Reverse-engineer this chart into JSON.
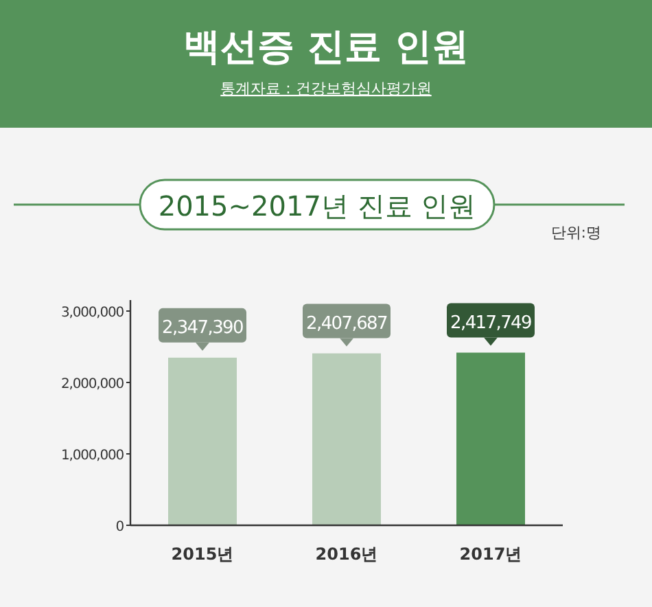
{
  "chart_data": {
    "type": "bar",
    "title": "백선증 진료 인원",
    "subtitle": "2015~2017년 진료 인원",
    "ylabel": "단위:명",
    "annotations": [
      "통계자료 : 건강보험심사평가원"
    ],
    "categories": [
      "2015년",
      "2016년",
      "2017년"
    ],
    "values": [
      2347390,
      2407687,
      2417749
    ],
    "value_labels": [
      "2,347,390",
      "2,407,687",
      "2,417,749"
    ],
    "colors": [
      "#b8cdb8",
      "#b8cdb8",
      "#55935a"
    ],
    "ylim": [
      0,
      3000000
    ],
    "yticks": [
      {
        "value": 0,
        "label": "0"
      },
      {
        "value": 1000000,
        "label": "1,000,000"
      },
      {
        "value": 2000000,
        "label": "2,000,000"
      },
      {
        "value": 3000000,
        "label": "3,000,000"
      }
    ],
    "grid": false
  }
}
